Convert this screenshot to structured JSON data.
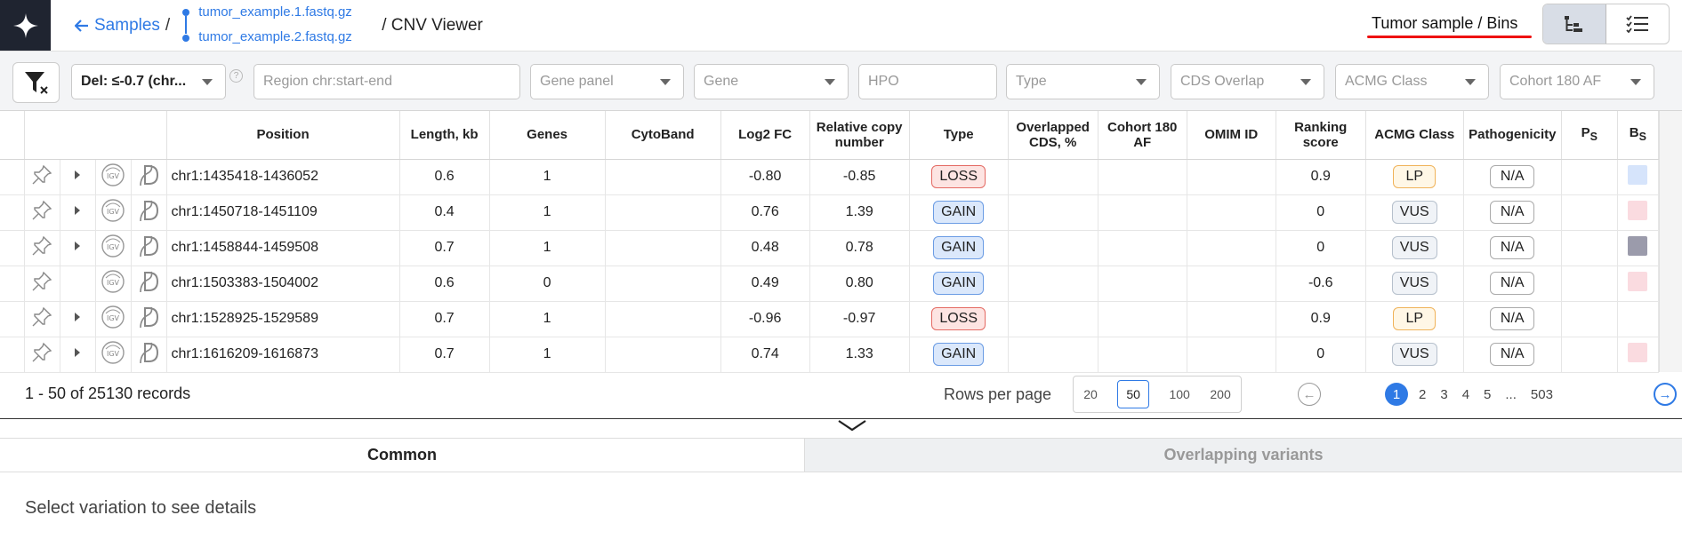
{
  "header": {
    "back_label": "Samples",
    "sep": "/",
    "file1": "tumor_example.1.fastq.gz",
    "file2": "tumor_example.2.fastq.gz",
    "title": "/ CNV Viewer",
    "sample_label": "Tumor sample / Bins"
  },
  "filters": {
    "del_value": "Del: ≤-0.7 (chr...",
    "help": "?",
    "region_placeholder": "Region chr:start-end",
    "gene_panel": "Gene panel",
    "gene": "Gene",
    "hpo_placeholder": "HPO",
    "type": "Type",
    "cds_overlap": "CDS Overlap",
    "acmg_class": "ACMG Class",
    "cohort_af": "Cohort 180 AF"
  },
  "table": {
    "columns": [
      "Position",
      "Length, kb",
      "Genes",
      "CytoBand",
      "Log2 FC",
      "Relative copy number",
      "Type",
      "Overlapped CDS, %",
      "Cohort 180 AF",
      "OMIM ID",
      "Ranking score",
      "ACMG Class",
      "Pathogenicity",
      "PS",
      "BS"
    ],
    "ps_sub": "S",
    "bs_sub": "S",
    "rows": [
      {
        "position": "chr1:1435418-1436052",
        "length": "0.6",
        "genes": "1",
        "cytoband": "",
        "log2fc": "-0.80",
        "rcn": "-0.85",
        "type": "LOSS",
        "cds": "",
        "cohort": "",
        "omim": "",
        "score": "0.9",
        "acmg": "LP",
        "path": "N/A",
        "ps": "",
        "bs_color": "#d6e4fb",
        "expandable": true
      },
      {
        "position": "chr1:1450718-1451109",
        "length": "0.4",
        "genes": "1",
        "cytoband": "",
        "log2fc": "0.76",
        "rcn": "1.39",
        "type": "GAIN",
        "cds": "",
        "cohort": "",
        "omim": "",
        "score": "0",
        "acmg": "VUS",
        "path": "N/A",
        "ps": "",
        "bs_color": "#fadbe0",
        "expandable": true
      },
      {
        "position": "chr1:1458844-1459508",
        "length": "0.7",
        "genes": "1",
        "cytoband": "",
        "log2fc": "0.48",
        "rcn": "0.78",
        "type": "GAIN",
        "cds": "",
        "cohort": "",
        "omim": "",
        "score": "0",
        "acmg": "VUS",
        "path": "N/A",
        "ps": "",
        "bs_color": "#9b9bab",
        "expandable": true
      },
      {
        "position": "chr1:1503383-1504002",
        "length": "0.6",
        "genes": "0",
        "cytoband": "",
        "log2fc": "0.49",
        "rcn": "0.80",
        "type": "GAIN",
        "cds": "",
        "cohort": "",
        "omim": "",
        "score": "-0.6",
        "acmg": "VUS",
        "path": "N/A",
        "ps": "",
        "bs_color": "#fadbe0",
        "expandable": false
      },
      {
        "position": "chr1:1528925-1529589",
        "length": "0.7",
        "genes": "1",
        "cytoband": "",
        "log2fc": "-0.96",
        "rcn": "-0.97",
        "type": "LOSS",
        "cds": "",
        "cohort": "",
        "omim": "",
        "score": "0.9",
        "acmg": "LP",
        "path": "N/A",
        "ps": "",
        "bs_color": "",
        "expandable": true
      },
      {
        "position": "chr1:1616209-1616873",
        "length": "0.7",
        "genes": "1",
        "cytoband": "",
        "log2fc": "0.74",
        "rcn": "1.33",
        "type": "GAIN",
        "cds": "",
        "cohort": "",
        "omim": "",
        "score": "0",
        "acmg": "VUS",
        "path": "N/A",
        "ps": "",
        "bs_color": "#fadbe0",
        "expandable": true
      }
    ]
  },
  "pager": {
    "records": "1 - 50 of 25130 records",
    "rows_per_page_label": "Rows per page",
    "rpp_options": [
      "20",
      "50",
      "100",
      "200"
    ],
    "rpp_selected": "50",
    "pages": [
      "1",
      "2",
      "3",
      "4",
      "5",
      "...",
      "503"
    ],
    "current_page": "1"
  },
  "tabs": {
    "common": "Common",
    "overlapping": "Overlapping variants"
  },
  "details_text": "Select variation to see details",
  "colors": {
    "accent": "#2f7ae5",
    "loss_bg": "#fde4e2",
    "gain_bg": "#dbe8fb",
    "lp_border": "#f0b35a",
    "underline": "#e11111"
  }
}
